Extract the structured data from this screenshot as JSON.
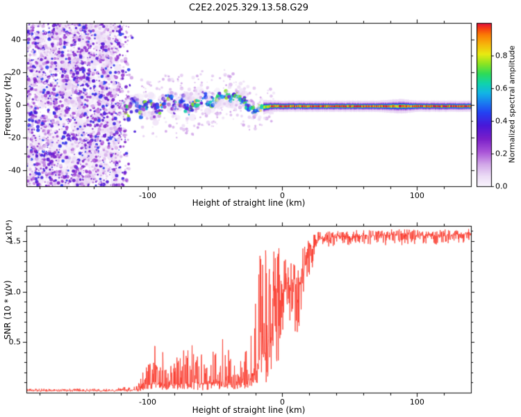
{
  "chart_data": [
    {
      "type": "heatmap",
      "name": "spectrogram",
      "title": "C2E2.2025.329.13.58.G29",
      "xlabel": "Height of straight line (km)",
      "ylabel": "Frequency (Hz)",
      "xlim": [
        -190,
        140
      ],
      "ylim": [
        -50,
        50
      ],
      "xticks": [
        [
          -100,
          "-100"
        ],
        [
          0,
          "0"
        ],
        [
          100,
          "100"
        ]
      ],
      "yticks": [
        [
          -40,
          "-40"
        ],
        [
          -20,
          "-20"
        ],
        [
          0,
          "0"
        ],
        [
          20,
          "20"
        ],
        [
          40,
          "40"
        ]
      ],
      "x_minor_step": 20,
      "y_minor_step": 10,
      "grid": false,
      "colorbar": {
        "label": "Normalized spectral amplitude",
        "range": [
          0,
          1
        ],
        "ticks": [
          [
            0.0,
            "0.0"
          ],
          [
            0.2,
            "0.2"
          ],
          [
            0.4,
            "0.4"
          ],
          [
            0.6,
            "0.6"
          ],
          [
            0.8,
            "0.8"
          ]
        ]
      },
      "colormap": [
        [
          0.0,
          "#f8f3fc"
        ],
        [
          0.06,
          "#ecdcf6"
        ],
        [
          0.13,
          "#d3a9e9"
        ],
        [
          0.21,
          "#a953d8"
        ],
        [
          0.29,
          "#7a1fc9"
        ],
        [
          0.37,
          "#4a17d8"
        ],
        [
          0.45,
          "#2341f2"
        ],
        [
          0.51,
          "#1a7af0"
        ],
        [
          0.57,
          "#12b4e6"
        ],
        [
          0.63,
          "#10d3ac"
        ],
        [
          0.69,
          "#2edb57"
        ],
        [
          0.75,
          "#8ce422"
        ],
        [
          0.81,
          "#e8ea12"
        ],
        [
          0.87,
          "#f6b60b"
        ],
        [
          0.93,
          "#fb7a05"
        ],
        [
          0.97,
          "#f53a14"
        ],
        [
          1.0,
          "#df0f3e"
        ]
      ],
      "noise_region": {
        "x_start": -190,
        "x_end": -121,
        "fade_end": -107,
        "value_range": [
          0.08,
          0.45
        ]
      },
      "ridge_format": [
        "height_km",
        "center_freq_hz",
        "width_hz",
        "amplitude"
      ],
      "ridge": [
        [
          -119,
          1.5,
          5,
          0.3
        ],
        [
          -114,
          -4,
          6,
          0.34
        ],
        [
          -109,
          2,
          6,
          0.36
        ],
        [
          -104,
          -4,
          6,
          0.4
        ],
        [
          -99,
          2,
          6,
          0.42
        ],
        [
          -94,
          -5,
          6,
          0.42
        ],
        [
          -89,
          -1,
          6,
          0.44
        ],
        [
          -84,
          4,
          6,
          0.45
        ],
        [
          -79,
          -2,
          6,
          0.46
        ],
        [
          -74,
          3,
          6,
          0.48
        ],
        [
          -69,
          -3,
          6,
          0.46
        ],
        [
          -64,
          1,
          5,
          0.5
        ],
        [
          -59,
          4,
          5,
          0.52
        ],
        [
          -54,
          1,
          5,
          0.52
        ],
        [
          -49,
          4,
          5,
          0.55
        ],
        [
          -44,
          7,
          5,
          0.57
        ],
        [
          -39,
          3,
          4,
          0.58
        ],
        [
          -34,
          6,
          4,
          0.6
        ],
        [
          -29,
          2,
          4,
          0.58
        ],
        [
          -24,
          -2,
          3.5,
          0.56
        ],
        [
          -19,
          -3,
          3,
          0.62
        ],
        [
          -14,
          -1.5,
          2.6,
          0.72
        ],
        [
          -9,
          -1,
          2.2,
          0.88
        ],
        [
          -4,
          -1,
          2,
          0.95
        ],
        [
          5,
          -1,
          2,
          0.97
        ],
        [
          40,
          -1,
          2,
          0.96
        ],
        [
          70,
          -1,
          2,
          0.97
        ],
        [
          88,
          -1,
          2.6,
          0.92
        ],
        [
          100,
          -1,
          2,
          0.97
        ],
        [
          140,
          -1,
          2,
          0.97
        ]
      ],
      "blobs_format": [
        "height_km",
        "center_freq_hz",
        "radius_hz",
        "peak_amplitude"
      ],
      "blobs": [
        [
          -5,
          -1,
          3.5,
          0.5
        ],
        [
          12,
          -1,
          3.5,
          0.45
        ],
        [
          45,
          -1,
          3,
          0.38
        ],
        [
          88,
          -1,
          5,
          0.55
        ],
        [
          118,
          -1,
          3,
          0.32
        ]
      ],
      "line_start": -14
    },
    {
      "type": "line",
      "name": "snr",
      "xlabel": "Height of straight line (km)",
      "ylabel": "SNR (10 * v/v)",
      "y_scale_label": "(x10⁴)",
      "xlim": [
        -190,
        140
      ],
      "ylim": [
        0,
        1.65
      ],
      "xticks": [
        [
          -100,
          "-100"
        ],
        [
          0,
          "0"
        ],
        [
          100,
          "100"
        ]
      ],
      "yticks": [
        [
          0.5,
          "0.5"
        ],
        [
          1,
          "1.0"
        ],
        [
          1.5,
          "1.5"
        ]
      ],
      "x_minor_step": 20,
      "y_minor_step": 0.1,
      "grid": false,
      "line_color": "#fa3224",
      "envelope_format": [
        "height_km",
        "base_snr",
        "upward_noise",
        "downward_noise"
      ],
      "envelope": [
        [
          -190,
          0.02,
          0.02,
          0.01
        ],
        [
          -125,
          0.02,
          0.02,
          0.01
        ],
        [
          -108,
          0.03,
          0.05,
          0.02
        ],
        [
          -101,
          0.06,
          0.22,
          0.04
        ],
        [
          -96,
          0.1,
          0.4,
          0.07
        ],
        [
          -90,
          0.1,
          0.34,
          0.07
        ],
        [
          -85,
          0.07,
          0.22,
          0.05
        ],
        [
          -79,
          0.08,
          0.26,
          0.05
        ],
        [
          -73,
          0.09,
          0.36,
          0.06
        ],
        [
          -66,
          0.1,
          0.4,
          0.07
        ],
        [
          -60,
          0.08,
          0.3,
          0.06
        ],
        [
          -54,
          0.09,
          0.34,
          0.06
        ],
        [
          -48,
          0.1,
          0.42,
          0.07
        ],
        [
          -42,
          0.1,
          0.44,
          0.07
        ],
        [
          -36,
          0.09,
          0.34,
          0.06
        ],
        [
          -30,
          0.1,
          0.3,
          0.07
        ],
        [
          -26,
          0.12,
          0.45,
          0.08
        ],
        [
          -22,
          0.2,
          0.8,
          0.15
        ],
        [
          -18,
          0.3,
          1.1,
          0.22
        ],
        [
          -14,
          0.4,
          1.15,
          0.3
        ],
        [
          -10,
          0.45,
          1.1,
          0.35
        ],
        [
          -7,
          0.55,
          1.0,
          0.42
        ],
        [
          -4,
          0.75,
          0.78,
          0.55
        ],
        [
          -1,
          0.95,
          0.48,
          0.5
        ],
        [
          2,
          1.05,
          0.3,
          0.38
        ],
        [
          5,
          1.05,
          0.28,
          0.32
        ],
        [
          8,
          1.0,
          0.3,
          0.36
        ],
        [
          11,
          0.95,
          0.32,
          0.4
        ],
        [
          14,
          1.1,
          0.3,
          0.32
        ],
        [
          17,
          1.25,
          0.22,
          0.26
        ],
        [
          20,
          1.35,
          0.18,
          0.22
        ],
        [
          24,
          1.45,
          0.12,
          0.16
        ],
        [
          28,
          1.52,
          0.08,
          0.11
        ],
        [
          35,
          1.54,
          0.06,
          0.09
        ],
        [
          60,
          1.55,
          0.06,
          0.09
        ],
        [
          85,
          1.56,
          0.06,
          0.1
        ],
        [
          110,
          1.55,
          0.06,
          0.09
        ],
        [
          140,
          1.57,
          0.05,
          0.08
        ]
      ]
    }
  ]
}
